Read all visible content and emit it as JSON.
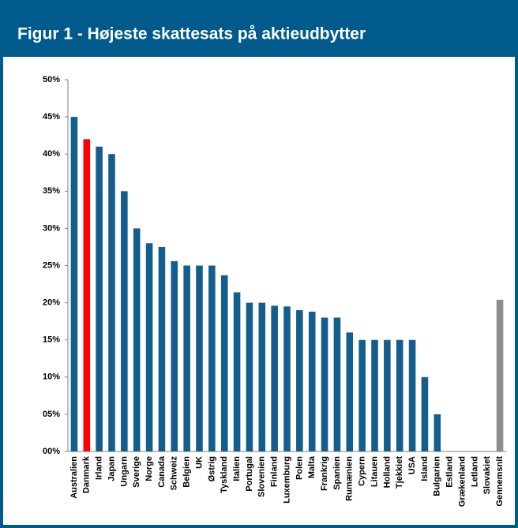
{
  "chart_data": {
    "type": "bar",
    "title": "Figur 1 - Højeste skattesats på aktieudbytter",
    "categories": [
      "Australien",
      "Danmark",
      "Irland",
      "Japan",
      "Ungarn",
      "Sverige",
      "Norge",
      "Canada",
      "Schweiz",
      "Belgien",
      "UK",
      "Østrig",
      "Tyskland",
      "Italien",
      "Portugal",
      "Slovenien",
      "Finland",
      "Luxemburg",
      "Polen",
      "Malta",
      "Frankrig",
      "Spanien",
      "Rumænien",
      "Cypern",
      "Litauen",
      "Holland",
      "Tjekkiet",
      "USA",
      "Island",
      "Bulgarien",
      "Estland",
      "Grækenland",
      "Letland",
      "Slovakiet",
      "Gennemsnit"
    ],
    "values": [
      45,
      42,
      41,
      40,
      35,
      30,
      28,
      27.5,
      25.6,
      25,
      25,
      25,
      23.7,
      21.4,
      20,
      20,
      19.6,
      19.5,
      19,
      18.8,
      18,
      18,
      16,
      15,
      15,
      15,
      15,
      15,
      10,
      5,
      0,
      0,
      0,
      0,
      20.4
    ],
    "colors": [
      "#135e8c",
      "#ff0000",
      "#135e8c",
      "#135e8c",
      "#135e8c",
      "#135e8c",
      "#135e8c",
      "#135e8c",
      "#135e8c",
      "#135e8c",
      "#135e8c",
      "#135e8c",
      "#135e8c",
      "#135e8c",
      "#135e8c",
      "#135e8c",
      "#135e8c",
      "#135e8c",
      "#135e8c",
      "#135e8c",
      "#135e8c",
      "#135e8c",
      "#135e8c",
      "#135e8c",
      "#135e8c",
      "#135e8c",
      "#135e8c",
      "#135e8c",
      "#135e8c",
      "#135e8c",
      "#135e8c",
      "#135e8c",
      "#135e8c",
      "#135e8c",
      "#8c8c8c"
    ],
    "ylim": [
      0,
      50
    ],
    "yticks": [
      {
        "value": 0,
        "label": "00%"
      },
      {
        "value": 5,
        "label": "05%"
      },
      {
        "value": 10,
        "label": "10%"
      },
      {
        "value": 15,
        "label": "15%"
      },
      {
        "value": 20,
        "label": "20%"
      },
      {
        "value": 25,
        "label": "25%"
      },
      {
        "value": 30,
        "label": "30%"
      },
      {
        "value": 35,
        "label": "35%"
      },
      {
        "value": 40,
        "label": "40%"
      },
      {
        "value": 45,
        "label": "45%"
      },
      {
        "value": 50,
        "label": "50%"
      }
    ],
    "grid": false
  }
}
